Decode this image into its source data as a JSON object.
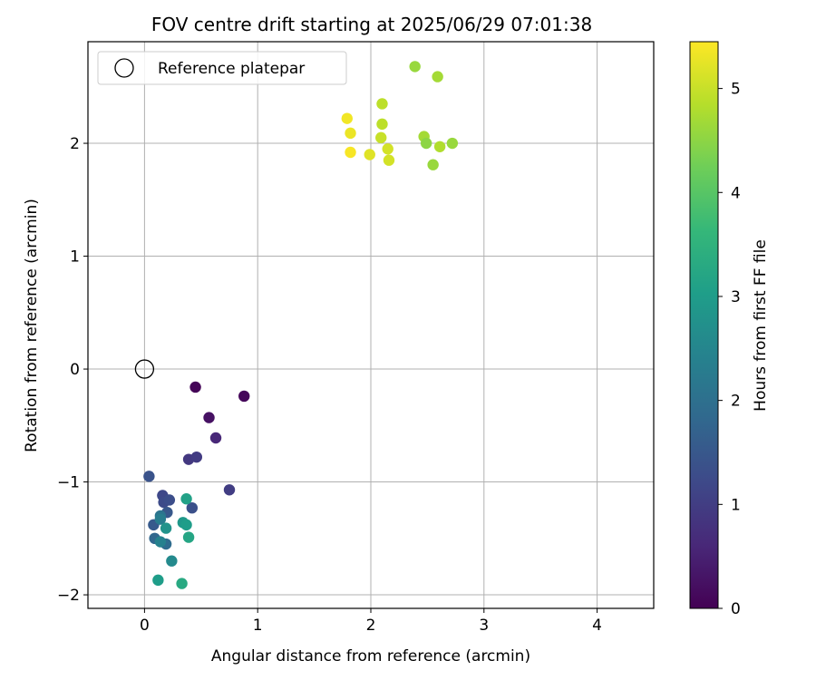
{
  "chart_data": {
    "type": "scatter",
    "title": "FOV centre drift starting at 2025/06/29 07:01:38",
    "xlabel": "Angular distance from reference (arcmin)",
    "ylabel": "Rotation from reference (arcmin)",
    "xlim": [
      -0.5,
      4.5
    ],
    "ylim": [
      -2.12,
      2.9
    ],
    "xticks": [
      0,
      1,
      2,
      3,
      4
    ],
    "yticks": [
      -2,
      -1,
      0,
      1,
      2
    ],
    "grid": true,
    "legend": {
      "placement": "top-left",
      "entries": [
        "Reference platepar"
      ]
    },
    "reference_point": {
      "x": 0,
      "y": 0,
      "label": "Reference platepar"
    },
    "colorbar": {
      "label": "Hours from first FF file",
      "range": [
        0,
        5.45
      ],
      "ticks": [
        0,
        1,
        2,
        3,
        4,
        5
      ],
      "colormap": "viridis",
      "colormap_stops": [
        "#440154",
        "#482878",
        "#3e4989",
        "#31688e",
        "#26828e",
        "#1f9e89",
        "#35b779",
        "#6ece58",
        "#b5de2b",
        "#fde725"
      ]
    },
    "points": [
      {
        "x": 0.45,
        "y": -0.16,
        "h": 0.05
      },
      {
        "x": 0.88,
        "y": -0.24,
        "h": 0.1
      },
      {
        "x": 0.57,
        "y": -0.43,
        "h": 0.25
      },
      {
        "x": 0.63,
        "y": -0.61,
        "h": 0.6
      },
      {
        "x": 0.39,
        "y": -0.8,
        "h": 0.9
      },
      {
        "x": 0.46,
        "y": -0.78,
        "h": 0.95
      },
      {
        "x": 0.75,
        "y": -1.07,
        "h": 1.0
      },
      {
        "x": 0.04,
        "y": -0.95,
        "h": 1.4
      },
      {
        "x": 0.16,
        "y": -1.12,
        "h": 1.2
      },
      {
        "x": 0.17,
        "y": -1.18,
        "h": 1.25
      },
      {
        "x": 0.22,
        "y": -1.16,
        "h": 1.3
      },
      {
        "x": 0.42,
        "y": -1.23,
        "h": 1.35
      },
      {
        "x": 0.2,
        "y": -1.27,
        "h": 1.5
      },
      {
        "x": 0.08,
        "y": -1.38,
        "h": 1.55
      },
      {
        "x": 0.09,
        "y": -1.5,
        "h": 1.8
      },
      {
        "x": 0.19,
        "y": -1.55,
        "h": 1.9
      },
      {
        "x": 0.14,
        "y": -1.3,
        "h": 2.1
      },
      {
        "x": 0.14,
        "y": -1.33,
        "h": 2.3
      },
      {
        "x": 0.14,
        "y": -1.53,
        "h": 2.4
      },
      {
        "x": 0.24,
        "y": -1.7,
        "h": 2.6
      },
      {
        "x": 0.19,
        "y": -1.41,
        "h": 2.8
      },
      {
        "x": 0.34,
        "y": -1.36,
        "h": 2.9
      },
      {
        "x": 0.37,
        "y": -1.38,
        "h": 3.0
      },
      {
        "x": 0.37,
        "y": -1.15,
        "h": 3.1
      },
      {
        "x": 0.39,
        "y": -1.49,
        "h": 3.2
      },
      {
        "x": 0.12,
        "y": -1.87,
        "h": 3.0
      },
      {
        "x": 0.33,
        "y": -1.9,
        "h": 3.3
      },
      {
        "x": 2.39,
        "y": 2.68,
        "h": 4.6
      },
      {
        "x": 2.59,
        "y": 2.59,
        "h": 4.7
      },
      {
        "x": 2.1,
        "y": 2.35,
        "h": 4.9
      },
      {
        "x": 2.1,
        "y": 2.17,
        "h": 4.9
      },
      {
        "x": 2.47,
        "y": 2.06,
        "h": 4.7
      },
      {
        "x": 2.49,
        "y": 2.0,
        "h": 4.5
      },
      {
        "x": 2.72,
        "y": 2.0,
        "h": 4.6
      },
      {
        "x": 2.61,
        "y": 1.97,
        "h": 4.8
      },
      {
        "x": 2.09,
        "y": 2.05,
        "h": 5.0
      },
      {
        "x": 2.55,
        "y": 1.81,
        "h": 4.6
      },
      {
        "x": 1.79,
        "y": 2.22,
        "h": 5.35
      },
      {
        "x": 1.82,
        "y": 2.09,
        "h": 5.3
      },
      {
        "x": 1.82,
        "y": 1.92,
        "h": 5.4
      },
      {
        "x": 1.99,
        "y": 1.9,
        "h": 5.2
      },
      {
        "x": 2.15,
        "y": 1.95,
        "h": 5.1
      },
      {
        "x": 2.16,
        "y": 1.85,
        "h": 5.1
      }
    ]
  }
}
